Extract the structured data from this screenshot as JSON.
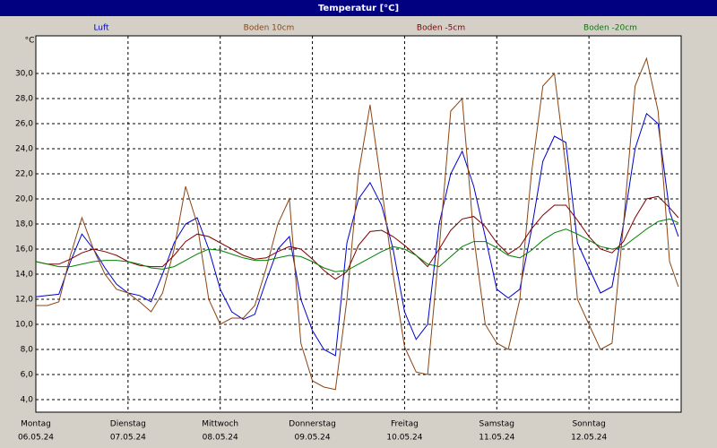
{
  "chart_data": {
    "type": "line",
    "title": "Temperatur [°C]",
    "y_unit": "°C",
    "x": [
      0,
      0.125,
      0.25,
      0.375,
      0.5,
      0.625,
      0.75,
      0.875,
      1,
      1.125,
      1.25,
      1.375,
      1.5,
      1.625,
      1.75,
      1.875,
      2,
      2.125,
      2.25,
      2.375,
      2.5,
      2.625,
      2.75,
      2.875,
      3,
      3.125,
      3.25,
      3.375,
      3.5,
      3.625,
      3.75,
      3.875,
      4,
      4.125,
      4.25,
      4.375,
      4.5,
      4.625,
      4.75,
      4.875,
      5,
      5.125,
      5.25,
      5.375,
      5.5,
      5.625,
      5.75,
      5.875,
      6,
      6.125,
      6.25,
      6.375,
      6.5,
      6.625,
      6.75,
      6.875,
      6.97
    ],
    "xlim": [
      0,
      7
    ],
    "xticks": [
      {
        "value": 0,
        "label": "Montag"
      },
      {
        "value": 1,
        "label": "Dienstag"
      },
      {
        "value": 2,
        "label": "Mittwoch"
      },
      {
        "value": 3,
        "label": "Donnerstag"
      },
      {
        "value": 4,
        "label": "Freitag"
      },
      {
        "value": 5,
        "label": "Samstag"
      },
      {
        "value": 6,
        "label": "Sonntag"
      }
    ],
    "xtick_dates": [
      "06.05.24",
      "07.05.24",
      "08.05.24",
      "09.05.24",
      "10.05.24",
      "11.05.24",
      "12.05.24"
    ],
    "ylim": [
      3,
      33
    ],
    "yticks": [
      {
        "value": 4,
        "label": "4,0"
      },
      {
        "value": 6,
        "label": "6,0"
      },
      {
        "value": 8,
        "label": "8,0"
      },
      {
        "value": 10,
        "label": "10,0"
      },
      {
        "value": 12,
        "label": "12,0"
      },
      {
        "value": 14,
        "label": "14,0"
      },
      {
        "value": 16,
        "label": "16,0"
      },
      {
        "value": 18,
        "label": "18,0"
      },
      {
        "value": 20,
        "label": "20,0"
      },
      {
        "value": 22,
        "label": "22,0"
      },
      {
        "value": 24,
        "label": "24,0"
      },
      {
        "value": 26,
        "label": "26,0"
      },
      {
        "value": 28,
        "label": "28,0"
      },
      {
        "value": 30,
        "label": "30,0"
      }
    ],
    "grid": true,
    "series": [
      {
        "name": "Luft",
        "color": "#0000cc",
        "values": [
          12.2,
          12.3,
          12.4,
          15,
          17.2,
          16,
          14.5,
          13.2,
          12.5,
          12.3,
          11.8,
          14,
          16.5,
          18,
          18.5,
          16,
          12.8,
          11,
          10.4,
          10.8,
          13.5,
          16,
          17,
          12,
          9.5,
          8,
          7.5,
          16.5,
          20,
          21.3,
          19.5,
          16,
          11,
          8.8,
          10,
          18,
          22,
          23.8,
          21,
          17,
          12.8,
          12.1,
          12.8,
          17.5,
          23,
          25,
          24.5,
          16.5,
          14.5,
          12.5,
          13,
          18,
          24,
          26.8,
          26,
          19,
          17
        ]
      },
      {
        "name": "Boden 10cm",
        "color": "#8b4513",
        "values": [
          11.5,
          11.5,
          11.8,
          15.5,
          18.5,
          16,
          14,
          12.8,
          12.5,
          11.8,
          11,
          12.5,
          16,
          21,
          18,
          12,
          10,
          10.5,
          10.5,
          11.5,
          14.5,
          18,
          20,
          8.5,
          5.5,
          5,
          4.8,
          12,
          22,
          27.5,
          21,
          14,
          8.2,
          6.2,
          6,
          16,
          27,
          28,
          17,
          10,
          8.5,
          8,
          12,
          22,
          29,
          30,
          22.5,
          12,
          10,
          8,
          8.5,
          18,
          29,
          31.2,
          27,
          15,
          13
        ]
      },
      {
        "name": "Boden -5cm",
        "color": "#800000",
        "values": [
          15,
          14.8,
          14.8,
          15.2,
          15.7,
          16,
          15.8,
          15.5,
          15,
          14.7,
          14.6,
          14.6,
          15.5,
          16.6,
          17.2,
          17,
          16.5,
          16,
          15.5,
          15.2,
          15.3,
          15.8,
          16.2,
          16,
          15.2,
          14.3,
          13.6,
          14.2,
          16.3,
          17.4,
          17.5,
          17,
          16.3,
          15.5,
          14.6,
          16,
          17.5,
          18.4,
          18.6,
          17.8,
          16.5,
          15.6,
          16.2,
          17.6,
          18.7,
          19.5,
          19.5,
          18.3,
          17,
          16,
          15.7,
          16.6,
          18.5,
          20,
          20.2,
          19.3,
          18.5
        ]
      },
      {
        "name": "Boden -20cm",
        "color": "#008000",
        "values": [
          15,
          14.8,
          14.6,
          14.6,
          14.8,
          15,
          15.1,
          15.1,
          15,
          14.8,
          14.5,
          14.4,
          14.6,
          15.1,
          15.6,
          16,
          15.9,
          15.6,
          15.3,
          15.1,
          15.1,
          15.3,
          15.5,
          15.4,
          15,
          14.5,
          14.2,
          14.3,
          14.8,
          15.3,
          15.8,
          16.2,
          16,
          15.5,
          14.8,
          14.6,
          15.4,
          16.2,
          16.6,
          16.6,
          16.1,
          15.5,
          15.3,
          15.9,
          16.7,
          17.3,
          17.6,
          17.2,
          16.7,
          16.2,
          16,
          16.2,
          16.9,
          17.6,
          18.2,
          18.4,
          18.1
        ]
      }
    ]
  }
}
